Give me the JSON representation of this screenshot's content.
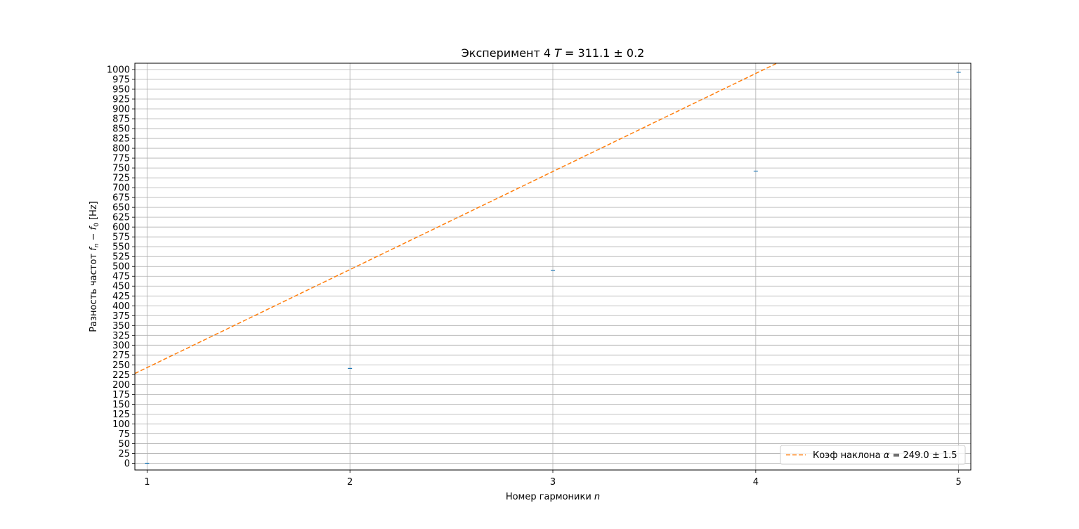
{
  "chart_data": {
    "type": "line",
    "title_text": "Эксперимент 4 ",
    "title_math_var": "T",
    "title_math_rest": " = 311.1 ± 0.2",
    "xlabel_text": "Номер гармоники ",
    "xlabel_math": "n",
    "ylabel_text": "Разность частот ",
    "ylabel_math_f": "f",
    "ylabel_math_sub_n": "n",
    "ylabel_minus": " − ",
    "ylabel_math_sub_0": "0",
    "ylabel_unit": " [Hz]",
    "xlim": [
      0.94,
      5.06
    ],
    "ylim": [
      -17,
      1016
    ],
    "x_ticks": [
      1,
      2,
      3,
      4,
      5
    ],
    "y_ticks": [
      0,
      25,
      50,
      75,
      100,
      125,
      150,
      175,
      200,
      225,
      250,
      275,
      300,
      325,
      350,
      375,
      400,
      425,
      450,
      475,
      500,
      525,
      550,
      575,
      600,
      625,
      650,
      675,
      700,
      725,
      750,
      775,
      800,
      825,
      850,
      875,
      900,
      925,
      950,
      975,
      1000
    ],
    "grid": true,
    "legend_position": "lower right",
    "series": [
      {
        "kind": "points",
        "color": "#1f77b4",
        "x": [
          1,
          2,
          3,
          4,
          5
        ],
        "y": [
          0,
          241,
          490,
          742,
          993
        ]
      },
      {
        "kind": "fit_line",
        "color": "#ff7f0e",
        "dashed": true,
        "slope": 249.0,
        "intercept": -6,
        "legend_text": "Коэф наклона ",
        "legend_math_var": "α",
        "legend_math_rest": " = 249.0 ± 1.5"
      }
    ]
  }
}
